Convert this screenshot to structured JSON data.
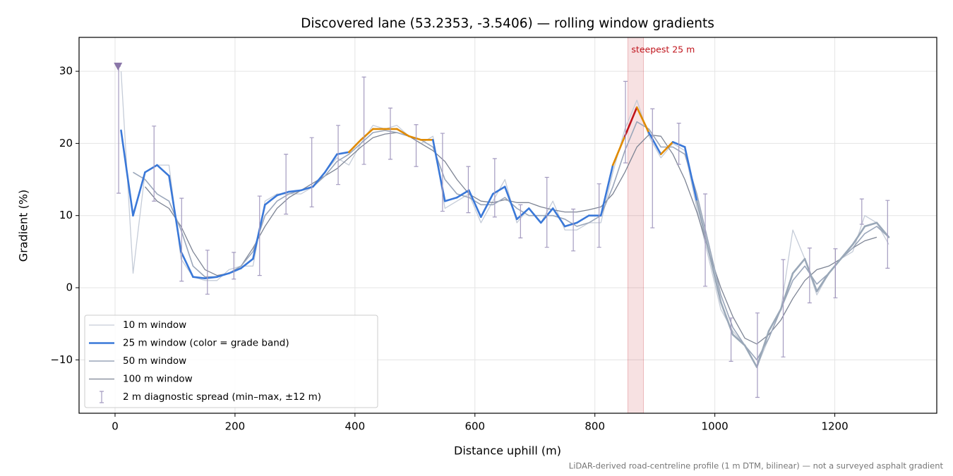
{
  "chart_data": {
    "type": "line",
    "title": "Discovered lane (53.2353, -3.5406) — rolling window gradients",
    "x_label": "Distance uphill (m)",
    "y_label": "Gradient (%)",
    "note": "LiDAR-derived road-centreline profile (1 m DTM, bilinear) — not a surveyed asphalt gradient",
    "xlim": [
      -60,
      1370
    ],
    "ylim": [
      -17.4,
      34.7
    ],
    "xticks": [
      0,
      200,
      400,
      600,
      800,
      1000,
      1200
    ],
    "yticks": [
      {
        "value": -10,
        "label": "−10"
      },
      0,
      10,
      20,
      30
    ],
    "grid": true,
    "legend": "lower left",
    "x": [
      10,
      30,
      50,
      70,
      90,
      110,
      130,
      150,
      170,
      190,
      210,
      230,
      250,
      270,
      290,
      310,
      330,
      350,
      370,
      390,
      410,
      430,
      450,
      470,
      490,
      510,
      530,
      550,
      570,
      590,
      610,
      630,
      650,
      670,
      690,
      710,
      730,
      750,
      770,
      790,
      810,
      830,
      850,
      870,
      890,
      910,
      930,
      950,
      970,
      990,
      1010,
      1030,
      1050,
      1070,
      1090,
      1110,
      1130,
      1150,
      1170,
      1190,
      1210,
      1230,
      1250,
      1270,
      1290
    ],
    "series": [
      {
        "name": "10 m window",
        "color": "#c5ccd8",
        "width": 1.3,
        "values": [
          30,
          2,
          16,
          17,
          17,
          4,
          1.5,
          1,
          1,
          2.5,
          3,
          3,
          12,
          13,
          13,
          13,
          14,
          16,
          18,
          17,
          20,
          22.5,
          22,
          22.5,
          21,
          20,
          21,
          11,
          12,
          13,
          9,
          12,
          15,
          9,
          11,
          9,
          12,
          8,
          8,
          9,
          9,
          16,
          22,
          26,
          21,
          18,
          20,
          19,
          11,
          4,
          -3,
          -6,
          -8,
          -11,
          -7,
          -3,
          8,
          4,
          -1,
          2,
          4,
          5,
          10,
          9,
          6
        ]
      },
      {
        "name": "25 m window (color = grade band)",
        "color": "#3a78d8",
        "width": 2.6,
        "values": [
          21.8,
          10,
          16,
          17,
          15.5,
          5,
          1.5,
          1.3,
          1.5,
          2,
          2.7,
          4,
          11.5,
          12.8,
          13.3,
          13.5,
          14,
          16,
          18.5,
          18.8,
          20.5,
          22,
          22,
          22,
          21,
          20.5,
          20.5,
          12,
          12.5,
          13.5,
          9.8,
          13,
          14,
          9.5,
          11,
          9,
          11,
          8.5,
          9,
          10,
          10,
          17,
          21,
          25,
          21.5,
          18.5,
          20.2,
          19.5,
          12,
          5,
          -2,
          -6.5,
          -8,
          -11,
          -6,
          -3,
          2,
          4,
          -0.5,
          2,
          4,
          6,
          8.5,
          9,
          7
        ],
        "band_colors": [
          "#e08a00",
          "#3a78d8",
          "#3a78d8",
          "#3a78d8",
          "#3a78d8",
          "#3a78d8",
          "#3a78d8",
          "#3a78d8",
          "#3a78d8",
          "#3a78d8",
          "#3a78d8",
          "#3a78d8",
          "#3a78d8",
          "#3a78d8",
          "#3a78d8",
          "#3a78d8",
          "#3a78d8",
          "#3a78d8",
          "#3a78d8",
          "#3a78d8",
          "#e08a00",
          "#e08a00",
          "#e08a00",
          "#e08a00",
          "#e08a00",
          "#e08a00",
          "#e08a00",
          "#3a78d8",
          "#3a78d8",
          "#3a78d8",
          "#3a78d8",
          "#3a78d8",
          "#3a78d8",
          "#3a78d8",
          "#3a78d8",
          "#3a78d8",
          "#3a78d8",
          "#3a78d8",
          "#3a78d8",
          "#3a78d8",
          "#3a78d8",
          "#3a78d8",
          "#e08a00",
          "#c0141c",
          "#e08a00",
          "#3a78d8",
          "#e08a00",
          "#3a78d8",
          "#3a78d8",
          "#9aa8b8",
          "#9aa8b8",
          "#9aa8b8",
          "#9aa8b8",
          "#9aa8b8",
          "#9aa8b8",
          "#9aa8b8",
          "#9aa8b8",
          "#9aa8b8",
          "#9aa8b8",
          "#9aa8b8",
          "#9aa8b8",
          "#9aa8b8",
          "#9aa8b8",
          "#9aa8b8",
          "#9aa8b8"
        ]
      },
      {
        "name": "50 m window",
        "color": "#9aa6ba",
        "width": 1.6,
        "values": [
          null,
          16,
          15,
          13,
          12,
          8,
          3,
          1.5,
          1.5,
          2,
          3,
          5,
          10,
          12,
          13,
          13.5,
          14,
          15.5,
          17.5,
          18.5,
          20,
          21.5,
          21.8,
          21.5,
          21,
          20.5,
          19.5,
          15,
          13,
          12.5,
          11.5,
          11.5,
          12.5,
          11,
          10,
          10,
          10,
          9.5,
          8.5,
          9,
          10,
          14,
          19,
          23,
          22,
          19.5,
          19.5,
          18.5,
          13,
          6,
          -1,
          -5.5,
          -8,
          -10,
          -7,
          -3,
          1,
          3,
          0.5,
          2,
          4,
          5.5,
          7.5,
          8.5,
          7
        ]
      },
      {
        "name": "100 m window",
        "color": "#7d8494",
        "width": 1.3,
        "values": [
          null,
          null,
          14,
          12,
          11,
          8.5,
          5,
          2.5,
          1.7,
          2,
          3,
          5.5,
          8.5,
          11,
          12.5,
          13.5,
          14.5,
          15.5,
          16.5,
          18,
          19.5,
          20.8,
          21.3,
          21.5,
          21,
          20,
          19,
          17.5,
          15,
          13,
          12,
          11.8,
          12.2,
          11.8,
          11.8,
          11.2,
          10.8,
          10.5,
          10.5,
          10.8,
          11.2,
          13,
          16,
          19.5,
          21.2,
          21,
          18.5,
          15,
          10.5,
          5,
          0,
          -4,
          -7,
          -7.8,
          -6.5,
          -4.5,
          -1.5,
          1,
          2.5,
          3,
          4,
          5.5,
          6.5,
          7,
          null
        ]
      }
    ],
    "errorbars": {
      "name": "2 m diagnostic spread (min–max, ±12 m)",
      "color": "#a49bc0",
      "x": [
        6,
        65,
        111,
        154,
        198,
        241,
        285,
        328,
        372,
        415,
        459,
        502,
        546,
        589,
        633,
        676,
        720,
        764,
        807,
        851,
        896,
        940,
        984,
        1027,
        1071,
        1114,
        1158,
        1201,
        1245,
        1288
      ],
      "low": [
        13.1,
        12,
        0.9,
        -0.9,
        1.2,
        1.7,
        10.2,
        11.2,
        14.3,
        17.1,
        17.8,
        16.8,
        10.6,
        10.4,
        9.8,
        6.9,
        5.6,
        5.1,
        5.6,
        17.3,
        8.3,
        17.1,
        0.2,
        -10.2,
        -15.2,
        -9.6,
        -2.1,
        -1.4,
        8.8,
        2.7
      ],
      "high": [
        30.7,
        22.4,
        12.4,
        5.2,
        4.9,
        12.7,
        18.5,
        20.8,
        22.5,
        29.2,
        24.9,
        22.6,
        21.4,
        16.8,
        17.9,
        11.5,
        15.3,
        10.9,
        14.4,
        28.6,
        24.8,
        22.8,
        13,
        -4.2,
        -3.5,
        3.9,
        5.5,
        5.4,
        12.3,
        12.1
      ]
    },
    "highlight": {
      "xlim": [
        855,
        881
      ],
      "label": "steepest 25 m",
      "color": "#c0141c"
    },
    "start_marker": {
      "x": 5,
      "y": 30.7,
      "color": "#8a76a8"
    }
  }
}
